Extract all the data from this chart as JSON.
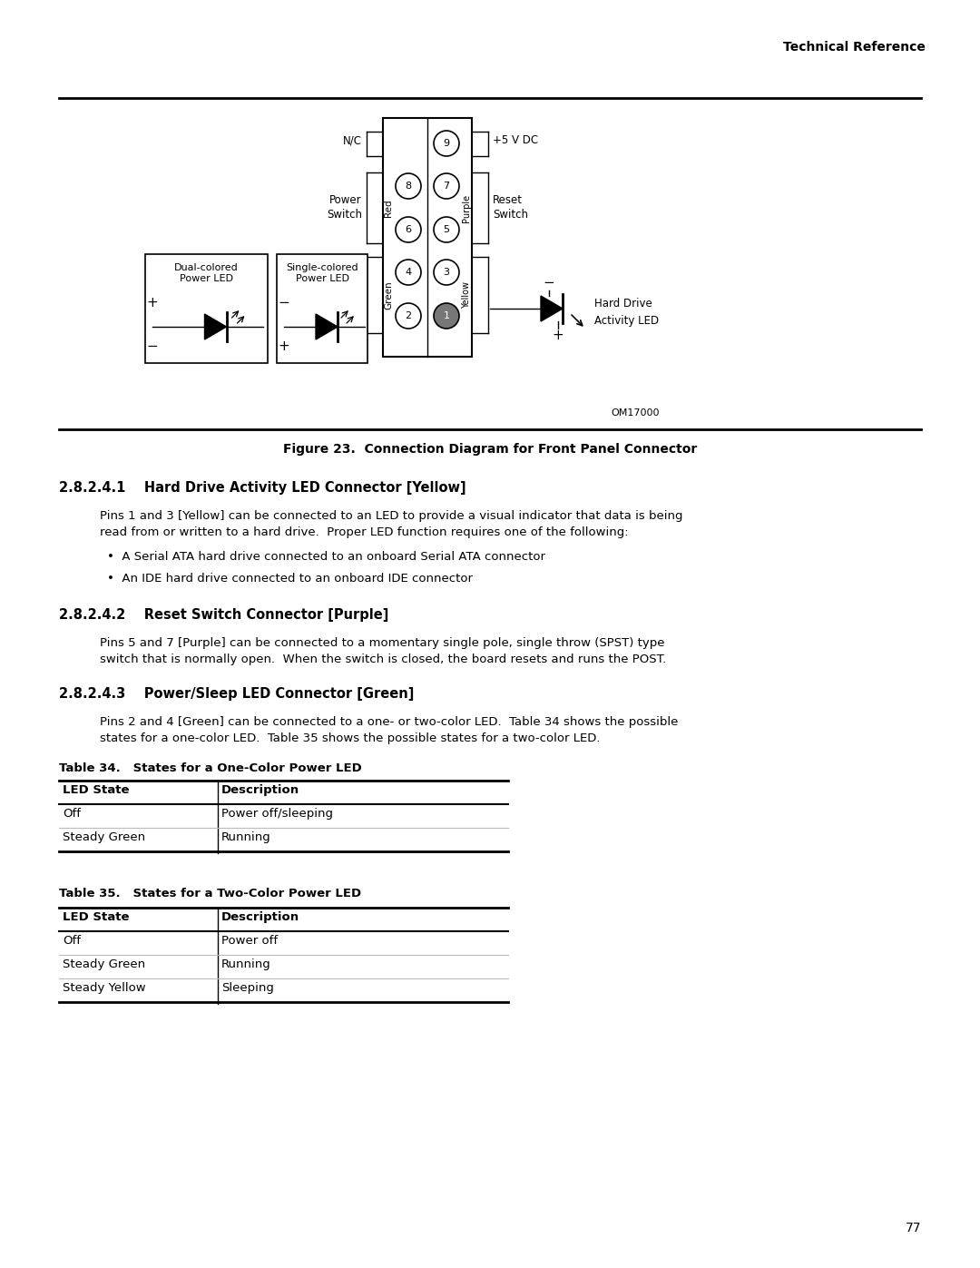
{
  "page_header": "Technical Reference",
  "figure_caption": "Figure 23.  Connection Diagram for Front Panel Connector",
  "om_number": "OM17000",
  "section_241_title": "2.8.2.4.1    Hard Drive Activity LED Connector [Yellow]",
  "section_241_body1": "Pins 1 and 3 [Yellow] can be connected to an LED to provide a visual indicator that data is being",
  "section_241_body2": "read from or written to a hard drive.  Proper LED function requires one of the following:",
  "section_241_bullets": [
    "A Serial ATA hard drive connected to an onboard Serial ATA connector",
    "An IDE hard drive connected to an onboard IDE connector"
  ],
  "section_242_title": "2.8.2.4.2    Reset Switch Connector [Purple]",
  "section_242_body1": "Pins 5 and 7 [Purple] can be connected to a momentary single pole, single throw (SPST) type",
  "section_242_body2": "switch that is normally open.  When the switch is closed, the board resets and runs the POST.",
  "section_243_title": "2.8.2.4.3    Power/Sleep LED Connector [Green]",
  "section_243_body1": "Pins 2 and 4 [Green] can be connected to a one- or two-color LED.  Table 34 shows the possible",
  "section_243_body2": "states for a one-color LED.  Table 35 shows the possible states for a two-color LED.",
  "table34_title": "Table 34.   States for a One-Color Power LED",
  "table34_headers": [
    "LED State",
    "Description"
  ],
  "table34_rows": [
    [
      "Off",
      "Power off/sleeping"
    ],
    [
      "Steady Green",
      "Running"
    ]
  ],
  "table35_title": "Table 35.   States for a Two-Color Power LED",
  "table35_headers": [
    "LED State",
    "Description"
  ],
  "table35_rows": [
    [
      "Off",
      "Power off"
    ],
    [
      "Steady Green",
      "Running"
    ],
    [
      "Steady Yellow",
      "Sleeping"
    ]
  ],
  "page_number": "77",
  "bg_color": "#ffffff"
}
